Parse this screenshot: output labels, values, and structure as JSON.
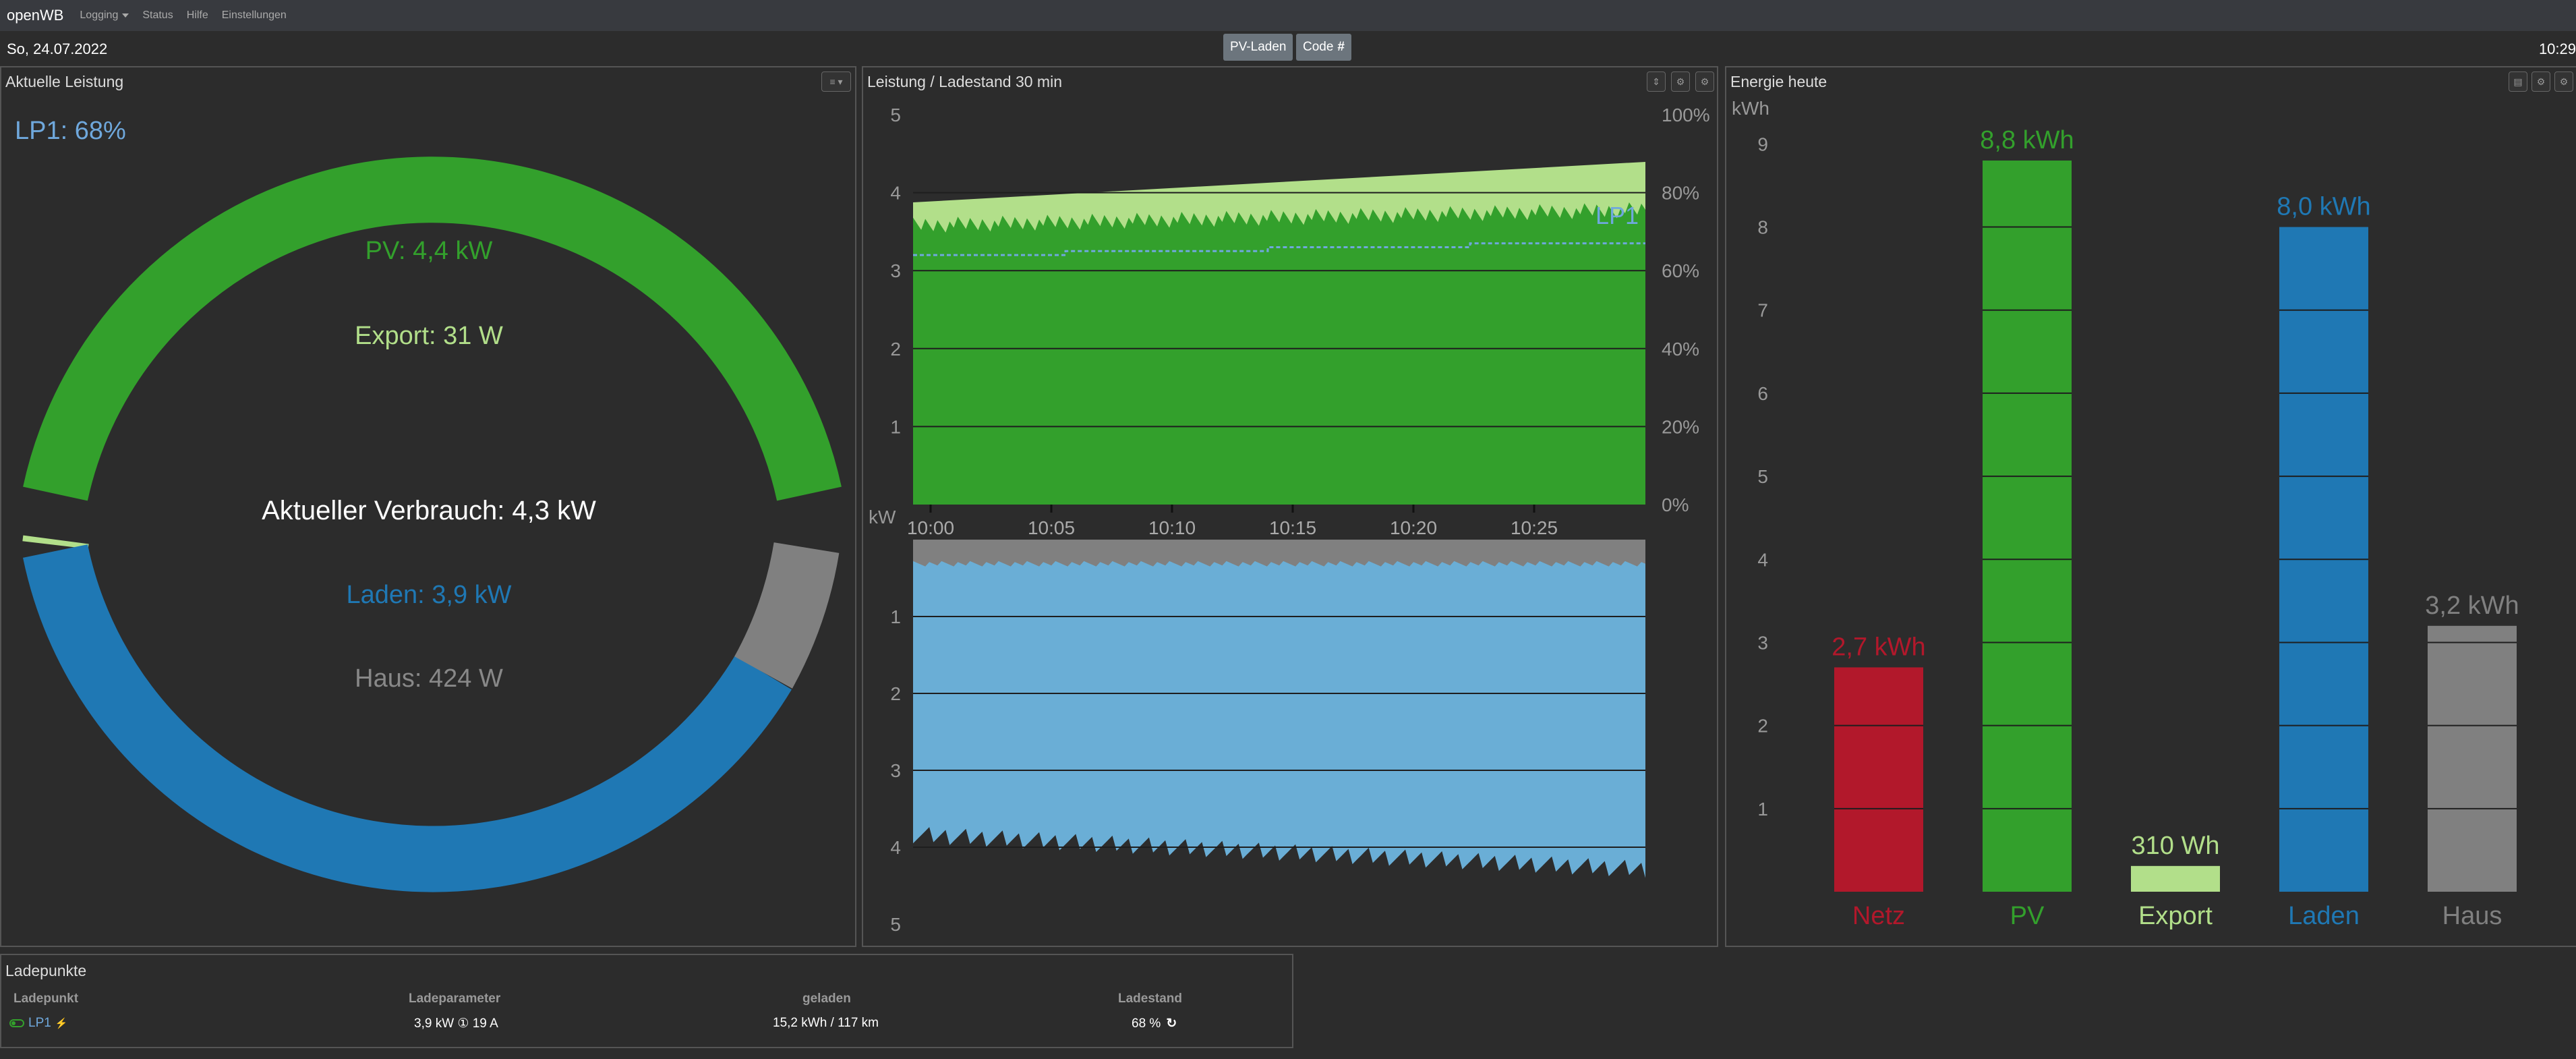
{
  "nav": {
    "brand": "openWB",
    "items": [
      "Logging",
      "Status",
      "Hilfe",
      "Einstellungen"
    ]
  },
  "header": {
    "date": "So, 24.07.2022",
    "time": "10:29",
    "pv_button": "PV-Laden",
    "code_button": "Code"
  },
  "power_panel": {
    "title": "Aktuelle Leistung",
    "lp_label": "LP1: 68%",
    "pv": "PV: 4,4 kW",
    "export": "Export: 31 W",
    "consumption": "Aktueller Verbrauch: 4,3 kW",
    "laden": "Laden: 3,9 kW",
    "haus": "Haus: 424 W",
    "colors": {
      "pv": "#33a02c",
      "export": "#b2df8a",
      "laden": "#1f78b4",
      "haus": "#808080"
    }
  },
  "chart_panel": {
    "title": "Leistung / Ladestand 30 min",
    "lp_series": "LP1",
    "kw_label": "kW",
    "top_y_ticks": [
      "5",
      "4",
      "3",
      "2",
      "1"
    ],
    "soc_ticks": [
      "100%",
      "80%",
      "60%",
      "40%",
      "20%",
      "0%"
    ],
    "x_ticks": [
      "10:00",
      "10:05",
      "10:10",
      "10:15",
      "10:20",
      "10:25"
    ],
    "bottom_y_ticks": [
      "1",
      "2",
      "3",
      "4",
      "5"
    ]
  },
  "energy_panel": {
    "title": "Energie heute",
    "unit": "kWh",
    "y_ticks": [
      "9",
      "8",
      "7",
      "6",
      "5",
      "4",
      "3",
      "2",
      "1"
    ]
  },
  "chart_data": [
    {
      "type": "area",
      "title": "Leistung / Ladestand 30 min",
      "x": [
        "10:00",
        "10:05",
        "10:10",
        "10:15",
        "10:20",
        "10:25",
        "10:29"
      ],
      "ylim": [
        0,
        5
      ],
      "y2lim": [
        0,
        100
      ],
      "series": [
        {
          "name": "LP1",
          "axis": "y2",
          "values": [
            64,
            64,
            65,
            65,
            66,
            67,
            68
          ]
        }
      ]
    },
    {
      "type": "bar",
      "title": "Energie heute",
      "ylabel": "kWh",
      "ylim": [
        0,
        9
      ],
      "categories": [
        "Netz",
        "PV",
        "Export",
        "Laden",
        "Haus"
      ],
      "values": [
        2.7,
        8.8,
        0.31,
        8.0,
        3.2
      ],
      "value_labels": [
        "2,7 kWh",
        "8,8 kWh",
        "310 Wh",
        "8,0 kWh",
        "3,2 kWh"
      ],
      "colors": [
        "#b2182b",
        "#33a02c",
        "#b2df8a",
        "#1f78b4",
        "#808080"
      ]
    }
  ],
  "ladepunkte": {
    "title": "Ladepunkte",
    "headers": [
      "Ladepunkt",
      "Ladeparameter",
      "geladen",
      "Ladestand"
    ],
    "row": {
      "name": "LP1",
      "params": "3,9 kW ① 19 A",
      "charged": "15,2 kWh / 117 km",
      "soc": "68 %"
    }
  }
}
